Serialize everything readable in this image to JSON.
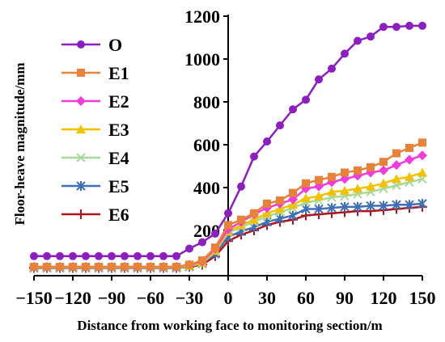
{
  "chart_data": {
    "type": "line",
    "xlabel": "Distance from working face to monitoring section/m",
    "ylabel": "Floor-heave magnitude/mm",
    "xlim": [
      -150,
      150
    ],
    "ylim": [
      0,
      1200
    ],
    "xticks": [
      -150,
      -120,
      -90,
      -60,
      -30,
      0,
      30,
      60,
      90,
      120,
      150
    ],
    "yticks": [
      200,
      400,
      600,
      800,
      1000,
      1200
    ],
    "xtick_labels": [
      "−150",
      "−120",
      "−90",
      "−60",
      "−30",
      "0",
      "30",
      "60",
      "90",
      "120",
      "150"
    ],
    "ytick_labels": [
      "200",
      "400",
      "600",
      "800",
      "1000",
      "1200"
    ],
    "grid": false,
    "legend_position": "top-left",
    "x": [
      -150,
      -140,
      -130,
      -120,
      -110,
      -100,
      -90,
      -80,
      -70,
      -60,
      -50,
      -40,
      -30,
      -20,
      -10,
      0,
      10,
      20,
      30,
      40,
      50,
      60,
      70,
      80,
      90,
      100,
      110,
      120,
      130,
      140,
      150
    ],
    "series": [
      {
        "name": "O",
        "color": "#8B1FBF",
        "marker": "circle",
        "values": [
          80,
          80,
          80,
          80,
          80,
          80,
          80,
          80,
          80,
          80,
          80,
          80,
          115,
          145,
          185,
          280,
          405,
          545,
          615,
          690,
          765,
          810,
          905,
          955,
          1025,
          1085,
          1105,
          1150,
          1150,
          1155,
          1155
        ]
      },
      {
        "name": "E1",
        "color": "#E8823A",
        "marker": "square",
        "values": [
          30,
          30,
          30,
          30,
          30,
          30,
          30,
          30,
          30,
          30,
          30,
          30,
          40,
          60,
          120,
          225,
          250,
          280,
          325,
          340,
          375,
          420,
          435,
          450,
          470,
          480,
          495,
          520,
          560,
          585,
          610
        ]
      },
      {
        "name": "E2",
        "color": "#F03CD8",
        "marker": "diamond",
        "values": [
          30,
          30,
          30,
          30,
          30,
          30,
          30,
          30,
          30,
          30,
          30,
          30,
          40,
          55,
          115,
          205,
          240,
          275,
          305,
          325,
          345,
          395,
          405,
          425,
          440,
          455,
          470,
          480,
          505,
          530,
          550
        ]
      },
      {
        "name": "E3",
        "color": "#F2C200",
        "marker": "triangle",
        "values": [
          30,
          30,
          30,
          30,
          30,
          30,
          30,
          30,
          30,
          30,
          30,
          30,
          35,
          50,
          105,
          195,
          225,
          250,
          280,
          300,
          320,
          350,
          360,
          380,
          385,
          395,
          405,
          420,
          440,
          450,
          470
        ]
      },
      {
        "name": "E4",
        "color": "#A8D89A",
        "marker": "x",
        "values": [
          28,
          28,
          28,
          28,
          28,
          28,
          28,
          28,
          28,
          28,
          28,
          28,
          33,
          48,
          100,
          190,
          215,
          240,
          265,
          285,
          305,
          330,
          340,
          355,
          360,
          370,
          380,
          395,
          410,
          425,
          440
        ]
      },
      {
        "name": "E5",
        "color": "#3F6FB5",
        "marker": "asterisk",
        "values": [
          25,
          25,
          25,
          25,
          25,
          25,
          25,
          25,
          25,
          25,
          25,
          25,
          30,
          45,
          90,
          170,
          195,
          215,
          240,
          255,
          270,
          300,
          300,
          305,
          310,
          310,
          315,
          315,
          320,
          320,
          325
        ]
      },
      {
        "name": "E6",
        "color": "#B0141B",
        "marker": "plus",
        "values": [
          25,
          25,
          25,
          25,
          25,
          25,
          25,
          25,
          25,
          25,
          25,
          25,
          30,
          40,
          80,
          150,
          180,
          200,
          225,
          240,
          250,
          270,
          275,
          280,
          285,
          290,
          290,
          295,
          300,
          305,
          310
        ]
      }
    ]
  }
}
